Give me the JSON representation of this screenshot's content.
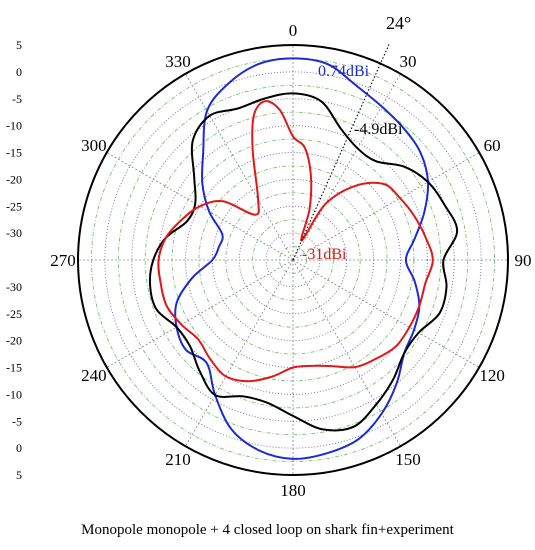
{
  "caption": "Monopole  monopole + 4 closed loop on shark fin+experiment",
  "chart_data": {
    "type": "polar-line",
    "angle_unit": "deg",
    "angle_ticks": [
      "0",
      "30",
      "60",
      "90",
      "120",
      "150",
      "180",
      "210",
      "240",
      "270",
      "300",
      "330"
    ],
    "radial_range": [
      -35,
      5
    ],
    "radial_ticks_upper": [
      "5",
      "0",
      "-5",
      "-10",
      "-15",
      "-20",
      "-25",
      "-30"
    ],
    "radial_ticks_lower": [
      "-30",
      "-25",
      "-20",
      "-15",
      "-10",
      "-5",
      "0",
      "5"
    ],
    "grid_rings": [
      -30,
      -25,
      -20,
      -15,
      -10,
      -5,
      0
    ],
    "spokes_every_deg": 30,
    "colors": {
      "blue": "#1c2bd0",
      "black": "#000000",
      "red": "#e01818",
      "grid_dotted": "#6a6aa8",
      "grid_dashdot": "#79c179"
    },
    "series": [
      {
        "key": "blue",
        "theta": [
          0,
          10,
          20,
          30,
          40,
          50,
          60,
          70,
          80,
          90,
          100,
          110,
          120,
          130,
          140,
          150,
          160,
          170,
          180,
          190,
          200,
          210,
          220,
          230,
          240,
          250,
          260,
          270,
          280,
          290,
          300,
          310,
          320,
          330,
          340,
          350
        ],
        "r": [
          2.5,
          2,
          -0.5,
          -2,
          -3,
          -4,
          -6,
          -9,
          -12,
          -14,
          -12,
          -10,
          -9,
          -8,
          -5,
          -2,
          0.5,
          1.5,
          2,
          1,
          -1.5,
          -6,
          -10,
          -9,
          -10,
          -12,
          -16,
          -20,
          -21,
          -21,
          -17,
          -13,
          -9,
          -3,
          0,
          2
        ]
      },
      {
        "key": "black",
        "theta": [
          0,
          10,
          20,
          30,
          40,
          50,
          60,
          70,
          80,
          90,
          100,
          110,
          120,
          130,
          140,
          150,
          160,
          170,
          180,
          190,
          200,
          210,
          220,
          230,
          240,
          250,
          260,
          270,
          280,
          290,
          300,
          310,
          320,
          330,
          340,
          350
        ],
        "r": [
          -4,
          -5,
          -9,
          -11,
          -11,
          -8,
          -6,
          -5,
          -4,
          -7,
          -6,
          -6,
          -8,
          -8,
          -6,
          -4,
          -2,
          -3,
          -6,
          -8,
          -8,
          -6,
          -8,
          -10,
          -10,
          -8,
          -8,
          -9,
          -11,
          -14,
          -14,
          -11,
          -6,
          -4,
          -5,
          -4.5
        ]
      },
      {
        "key": "red",
        "theta": [
          0,
          6,
          12,
          18,
          24,
          30,
          40,
          50,
          60,
          70,
          80,
          90,
          100,
          110,
          120,
          130,
          140,
          150,
          160,
          170,
          180,
          190,
          200,
          210,
          220,
          230,
          240,
          250,
          260,
          270,
          280,
          290,
          300,
          310,
          320,
          330,
          340,
          345,
          350,
          355
        ],
        "r": [
          -12,
          -14,
          -19,
          -25,
          -31,
          -23,
          -17,
          -13,
          -12,
          -11,
          -10,
          -9,
          -10,
          -10,
          -10,
          -10,
          -11,
          -12,
          -14,
          -15,
          -15,
          -13,
          -11,
          -10,
          -11,
          -12,
          -11,
          -10,
          -10,
          -10,
          -11,
          -13,
          -15,
          -18,
          -24,
          -22,
          -13,
          -7,
          -5,
          -7
        ]
      }
    ],
    "annotations": [
      {
        "text": "0.74dBi",
        "color": "#1c2bd0"
      },
      {
        "text": "-4.9dBi",
        "color": "#000000"
      },
      {
        "text": "-31dBi",
        "color": "#e01818"
      },
      {
        "text": "24°",
        "color": "#000000"
      }
    ]
  }
}
